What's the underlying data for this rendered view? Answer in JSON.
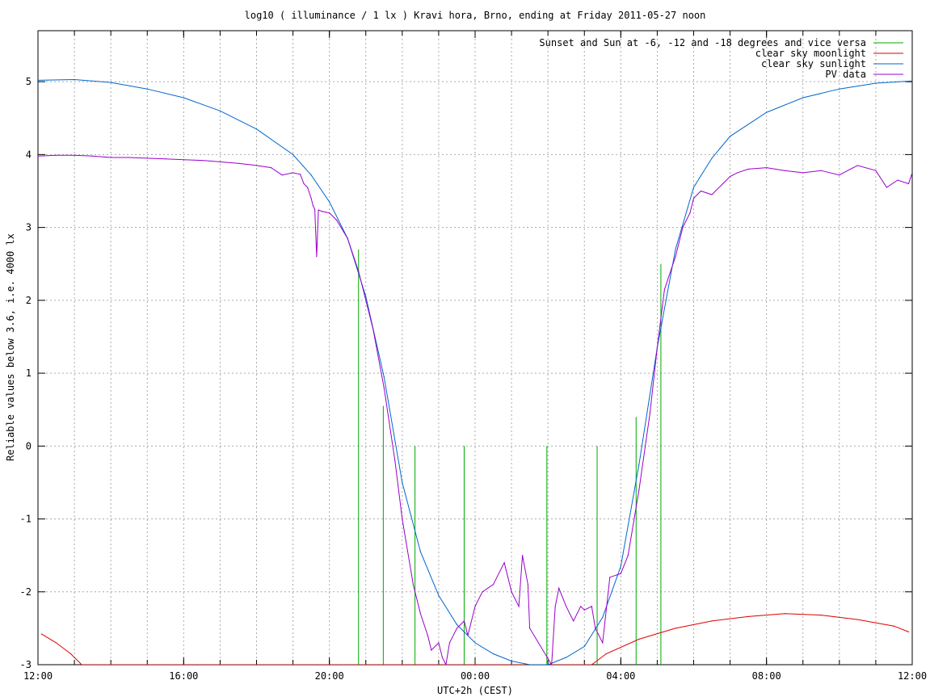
{
  "chart_data": {
    "type": "line",
    "title": "log10 ( illuminance / 1 lx ) Kravi hora, Brno, ending at Friday 2011-05-27 noon",
    "xlabel": "UTC+2h (CEST)",
    "ylabel": "Reliable values below 3.6, i.e. 4000 lx",
    "xlim": [
      12,
      36
    ],
    "ylim": [
      -3,
      5.7
    ],
    "x_ticks": [
      {
        "value": 12,
        "label": "12:00"
      },
      {
        "value": 16,
        "label": "16:00"
      },
      {
        "value": 20,
        "label": "20:00"
      },
      {
        "value": 24,
        "label": "00:00"
      },
      {
        "value": 28,
        "label": "04:00"
      },
      {
        "value": 32,
        "label": "08:00"
      },
      {
        "value": 36,
        "label": "12:00"
      }
    ],
    "y_ticks": [
      {
        "value": -3,
        "label": "-3"
      },
      {
        "value": -2,
        "label": "-2"
      },
      {
        "value": -1,
        "label": "-1"
      },
      {
        "value": 0,
        "label": "0"
      },
      {
        "value": 1,
        "label": "1"
      },
      {
        "value": 2,
        "label": "2"
      },
      {
        "value": 3,
        "label": "3"
      },
      {
        "value": 4,
        "label": "4"
      },
      {
        "value": 5,
        "label": "5"
      }
    ],
    "grid": true,
    "legend_position": "top-right",
    "series": [
      {
        "name": "Sunset and Sun at -6, -12 and -18 degrees and vice versa",
        "color": "#00aa00",
        "style": "vertical-markers",
        "markers": [
          {
            "x": 20.8,
            "y": 2.7
          },
          {
            "x": 21.48,
            "y": 0.55
          },
          {
            "x": 22.35,
            "y": 0.0
          },
          {
            "x": 23.7,
            "y": 0.0
          },
          {
            "x": 25.97,
            "y": 0.0
          },
          {
            "x": 27.35,
            "y": 0.0
          },
          {
            "x": 28.42,
            "y": 0.4
          },
          {
            "x": 29.1,
            "y": 2.5
          }
        ]
      },
      {
        "name": "clear sky moonlight",
        "color": "#dd0000",
        "x": [
          12.1,
          12.5,
          12.9,
          13.2,
          27.2,
          27.6,
          28.5,
          29.5,
          30.5,
          31.5,
          32.5,
          33.5,
          34.5,
          35.5,
          35.9
        ],
        "y": [
          -2.58,
          -2.7,
          -2.85,
          -3.0,
          -3.0,
          -2.85,
          -2.65,
          -2.5,
          -2.4,
          -2.34,
          -2.3,
          -2.32,
          -2.38,
          -2.47,
          -2.55
        ]
      },
      {
        "name": "clear sky sunlight",
        "color": "#0066cc",
        "x": [
          12,
          13,
          14,
          15,
          16,
          17,
          18,
          19,
          19.5,
          20,
          20.5,
          21,
          21.5,
          22,
          22.5,
          23,
          23.5,
          24,
          24.5,
          25,
          25.5,
          26,
          26.5,
          27,
          27.5,
          28,
          28.5,
          29,
          29.5,
          30,
          30.5,
          31,
          32,
          33,
          34,
          35,
          36
        ],
        "y": [
          5.02,
          5.03,
          4.99,
          4.9,
          4.78,
          4.6,
          4.35,
          4.0,
          3.72,
          3.35,
          2.85,
          2.05,
          0.95,
          -0.5,
          -1.45,
          -2.05,
          -2.45,
          -2.7,
          -2.85,
          -2.95,
          -3.0,
          -3.0,
          -2.9,
          -2.75,
          -2.35,
          -1.65,
          -0.25,
          1.35,
          2.7,
          3.55,
          3.95,
          4.25,
          4.58,
          4.78,
          4.9,
          4.98,
          5.01
        ]
      },
      {
        "name": "PV data",
        "color": "#9900cc",
        "x": [
          12,
          12.5,
          13,
          13.5,
          14,
          14.5,
          15,
          15.5,
          16,
          16.5,
          17,
          17.5,
          18,
          18.4,
          18.7,
          19,
          19.2,
          19.3,
          19.4,
          19.5,
          19.55,
          19.6,
          19.65,
          19.7,
          19.8,
          20,
          20.2,
          20.5,
          20.8,
          21,
          21.2,
          21.5,
          21.8,
          22,
          22.3,
          22.5,
          22.7,
          22.8,
          23,
          23.1,
          23.2,
          23.3,
          23.5,
          23.7,
          23.8,
          24,
          24.2,
          24.5,
          24.8,
          25,
          25.2,
          25.3,
          25.45,
          25.5,
          26.1,
          26.2,
          26.3,
          26.5,
          26.7,
          26.9,
          27,
          27.2,
          27.3,
          27.5,
          27.7,
          28,
          28.2,
          28.5,
          28.8,
          29,
          29.2,
          29.5,
          29.7,
          29.9,
          30,
          30.2,
          30.5,
          30.8,
          31,
          31.2,
          31.5,
          32,
          32.5,
          33,
          33.5,
          34,
          34.3,
          34.5,
          35,
          35.3,
          35.6,
          35.9,
          36
        ],
        "y": [
          3.98,
          3.99,
          3.99,
          3.98,
          3.96,
          3.96,
          3.95,
          3.94,
          3.93,
          3.92,
          3.9,
          3.88,
          3.85,
          3.82,
          3.72,
          3.75,
          3.73,
          3.6,
          3.55,
          3.4,
          3.3,
          3.25,
          2.6,
          3.24,
          3.22,
          3.2,
          3.1,
          2.85,
          2.4,
          2.0,
          1.6,
          0.8,
          -0.2,
          -1.0,
          -1.9,
          -2.3,
          -2.6,
          -2.8,
          -2.7,
          -2.9,
          -3.0,
          -2.7,
          -2.5,
          -2.4,
          -2.6,
          -2.2,
          -2.0,
          -1.9,
          -1.6,
          -2.0,
          -2.2,
          -1.5,
          -1.9,
          -2.5,
          -3.0,
          -2.2,
          -1.95,
          -2.2,
          -2.4,
          -2.2,
          -2.25,
          -2.2,
          -2.5,
          -2.7,
          -1.8,
          -1.75,
          -1.5,
          -0.6,
          0.45,
          1.35,
          2.15,
          2.6,
          3.0,
          3.2,
          3.4,
          3.5,
          3.45,
          3.6,
          3.7,
          3.75,
          3.8,
          3.82,
          3.78,
          3.75,
          3.78,
          3.72,
          3.8,
          3.85,
          3.78,
          3.55,
          3.65,
          3.6,
          3.75
        ]
      }
    ]
  }
}
